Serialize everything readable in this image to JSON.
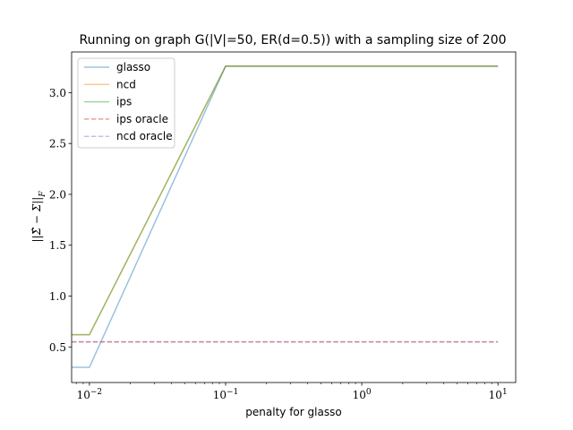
{
  "chart_data": {
    "type": "line",
    "title": "Running on graph G(|V|=50, ER(d=0.5)) with a sampling size of 200",
    "xlabel": "penalty for glasso",
    "ylabel": "||Σ̂ − Σ||_F",
    "xscale": "log",
    "xlim": [
      0.0074,
      13.5
    ],
    "ylim": [
      0.15,
      3.4
    ],
    "x": [
      0.01,
      0.1,
      1,
      10
    ],
    "x_tick_labels": [
      {
        "base": "10",
        "exp": "−2"
      },
      {
        "base": "10",
        "exp": "−1"
      },
      {
        "base": "10",
        "exp": "0"
      },
      {
        "base": "10",
        "exp": "1"
      }
    ],
    "y_ticks": [
      0.5,
      1.0,
      1.5,
      2.0,
      2.5,
      3.0
    ],
    "y_tick_labels": [
      "0.5",
      "1.0",
      "1.5",
      "2.0",
      "2.5",
      "3.0"
    ],
    "legend_placement": "upper-left",
    "series": [
      {
        "name": "glasso",
        "color": "#1f77b4",
        "dash": "solid",
        "values": [
          [
            0.0074,
            0.3
          ],
          [
            0.01,
            0.3
          ],
          [
            0.1,
            3.26
          ],
          [
            1,
            3.26
          ],
          [
            10,
            3.26
          ]
        ]
      },
      {
        "name": "ncd",
        "color": "#ff7f0e",
        "dash": "solid",
        "values": [
          [
            0.0074,
            0.62
          ],
          [
            0.01,
            0.62
          ],
          [
            0.1,
            3.26
          ],
          [
            1,
            3.26
          ],
          [
            10,
            3.26
          ]
        ]
      },
      {
        "name": "ips",
        "color": "#2ca02c",
        "dash": "solid",
        "values": [
          [
            0.0074,
            0.62
          ],
          [
            0.01,
            0.62
          ],
          [
            0.1,
            3.26
          ],
          [
            1,
            3.26
          ],
          [
            10,
            3.26
          ]
        ]
      },
      {
        "name": "ips oracle",
        "color": "#d62728",
        "dash": "dashed",
        "values": [
          [
            0.0074,
            0.55
          ],
          [
            10,
            0.55
          ]
        ]
      },
      {
        "name": "ncd oracle",
        "color": "#9467bd",
        "dash": "dashed",
        "values": [
          [
            0.0074,
            0.55
          ],
          [
            10,
            0.55
          ]
        ]
      }
    ]
  }
}
